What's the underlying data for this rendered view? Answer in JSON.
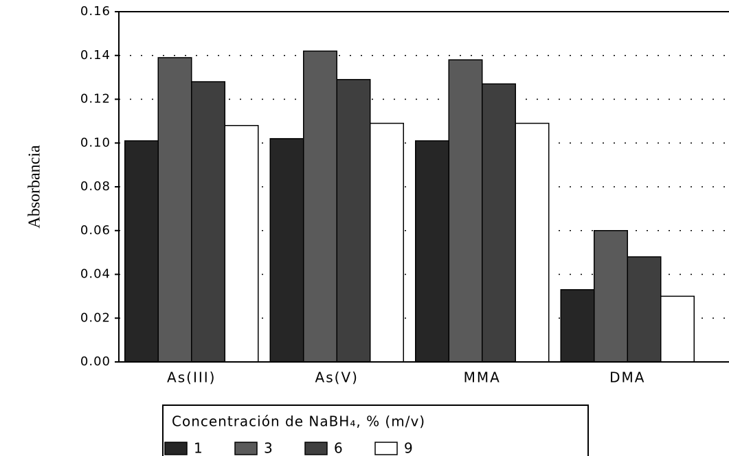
{
  "chart_data": {
    "type": "bar",
    "y_label": "Absorbancia",
    "categories": [
      "As(III)",
      "As(V)",
      "MMA",
      "DMA"
    ],
    "legend_title": "Concentración de NaBH₄, % (m/v)",
    "series": [
      {
        "name": "1",
        "color": "#262626",
        "values": [
          0.101,
          0.102,
          0.101,
          0.033
        ]
      },
      {
        "name": "3",
        "color": "#5a5a5a",
        "values": [
          0.139,
          0.142,
          0.138,
          0.06
        ]
      },
      {
        "name": "6",
        "color": "#3f3f3f",
        "values": [
          0.128,
          0.129,
          0.127,
          0.048
        ]
      },
      {
        "name": "9",
        "color": "#ffffff",
        "values": [
          0.108,
          0.109,
          0.109,
          0.03
        ]
      }
    ],
    "ylim": [
      0,
      0.16
    ],
    "yticks": [
      {
        "value": 0,
        "label": "0.00"
      },
      {
        "value": 0.02,
        "label": "0.02"
      },
      {
        "value": 0.04,
        "label": "0.04"
      },
      {
        "value": 0.06,
        "label": "0.06"
      },
      {
        "value": 0.08,
        "label": "0.08"
      },
      {
        "value": 0.1,
        "label": "0.10"
      },
      {
        "value": 0.12,
        "label": "0.12"
      },
      {
        "value": 0.14,
        "label": "0.14"
      },
      {
        "value": 0.16,
        "label": "0.16"
      }
    ],
    "grid": true
  }
}
